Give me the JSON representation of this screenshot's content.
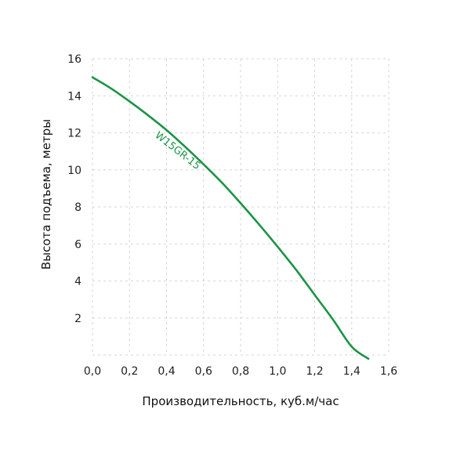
{
  "chart_data": {
    "type": "line",
    "title": "",
    "xlabel": "Производительность, куб.м/час",
    "ylabel": "Высота подъема, метры",
    "xlim": [
      0,
      1.6
    ],
    "ylim": [
      0,
      16
    ],
    "grid": true,
    "x_ticks": [
      0.0,
      0.2,
      0.4,
      0.6,
      0.8,
      1.0,
      1.2,
      1.4,
      1.6
    ],
    "x_tick_labels": [
      "0,0",
      "0,2",
      "0,4",
      "0,6",
      "0,8",
      "1,0",
      "1,2",
      "1,4",
      "1,6"
    ],
    "y_ticks": [
      2,
      4,
      6,
      8,
      10,
      12,
      14,
      16
    ],
    "y_tick_labels": [
      "2",
      "4",
      "6",
      "8",
      "10",
      "12",
      "14",
      "16"
    ],
    "series": [
      {
        "name": "W15GR-15",
        "color": "#1a9444",
        "x": [
          0.0,
          0.1,
          0.2,
          0.3,
          0.4,
          0.5,
          0.6,
          0.7,
          0.8,
          0.9,
          1.0,
          1.1,
          1.2,
          1.3,
          1.4,
          1.49
        ],
        "y": [
          15.0,
          14.4,
          13.7,
          12.95,
          12.15,
          11.25,
          10.3,
          9.3,
          8.2,
          7.05,
          5.85,
          4.6,
          3.25,
          1.9,
          0.45,
          -0.2
        ]
      }
    ]
  }
}
